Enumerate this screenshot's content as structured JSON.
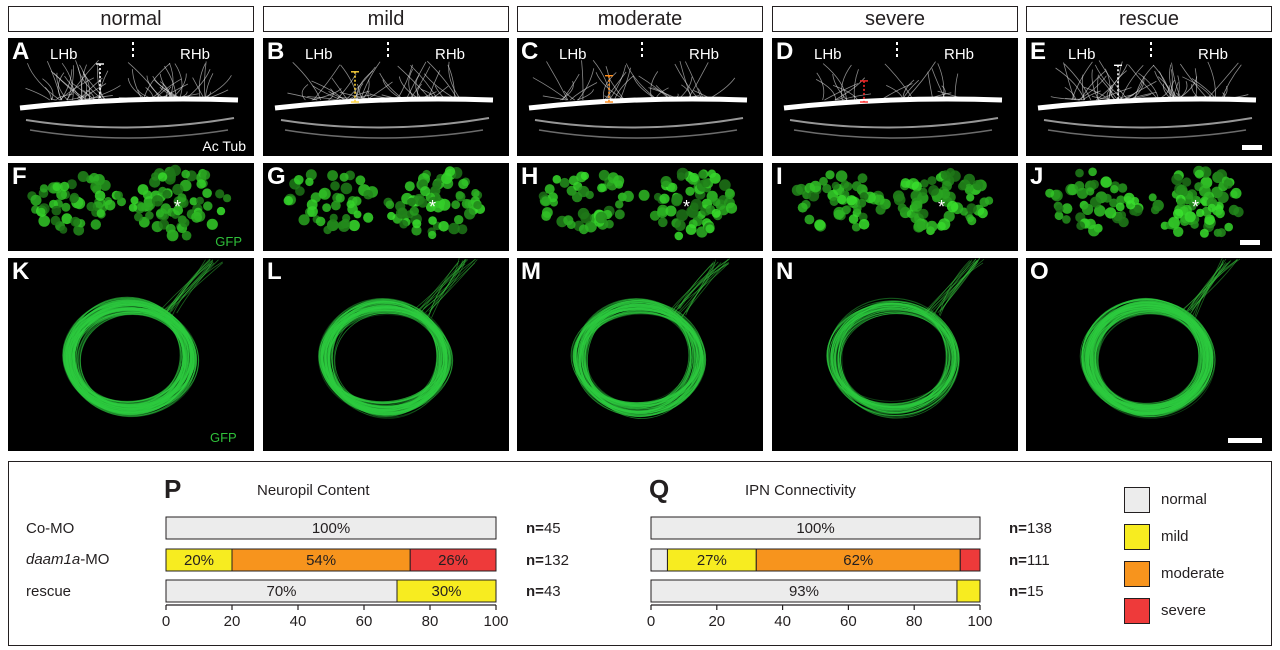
{
  "columns": [
    {
      "header": "normal",
      "letters": [
        "A",
        "F",
        "K"
      ],
      "img_labels": {
        "left": "LHb",
        "right": "RHb"
      },
      "scale_color": "#ffffff",
      "neuropil": 1.0,
      "gfp": 1.0,
      "ipn": 1.0
    },
    {
      "header": "mild",
      "letters": [
        "B",
        "G",
        "L"
      ],
      "img_labels": {
        "left": "LHb",
        "right": "RHb"
      },
      "scale_color": "#ffd43b",
      "neuropil": 0.7,
      "gfp": 0.8,
      "ipn": 0.8
    },
    {
      "header": "moderate",
      "letters": [
        "C",
        "H",
        "M"
      ],
      "img_labels": {
        "left": "LHb",
        "right": "RHb"
      },
      "scale_color": "#ff8c1a",
      "neuropil": 0.55,
      "gfp": 0.85,
      "ipn": 0.7
    },
    {
      "header": "severe",
      "letters": [
        "D",
        "I",
        "N"
      ],
      "img_labels": {
        "left": "LHb",
        "right": "RHb"
      },
      "scale_color": "#ff2a2a",
      "neuropil": 0.35,
      "gfp": 0.95,
      "ipn": 0.55
    },
    {
      "header": "rescue",
      "letters": [
        "E",
        "J",
        "O"
      ],
      "img_labels": {
        "left": "LHb",
        "right": "RHb"
      },
      "scale_color": "#ffffff",
      "neuropil": 0.95,
      "gfp": 0.9,
      "ipn": 1.0
    }
  ],
  "stains": {
    "actub": "Ac Tub",
    "gfp_f": "GFP",
    "gfp_k": "GFP"
  },
  "legend": [
    {
      "label": "normal",
      "color": "#ececec"
    },
    {
      "label": "mild",
      "color": "#f7ec20"
    },
    {
      "label": "moderate",
      "color": "#f7941d"
    },
    {
      "label": "severe",
      "color": "#ee3a3a"
    }
  ],
  "chart_data": [
    {
      "type": "bar",
      "letter": "P",
      "title": "Neuropil Content",
      "categories": [
        "Co-MO",
        "daam1a-MO",
        "rescue"
      ],
      "category_plain": "-MO",
      "category_italic": "daam1a",
      "xlim": [
        0,
        100
      ],
      "xticks": [
        "0",
        "20",
        "40",
        "60",
        "80",
        "100"
      ],
      "series": [
        {
          "name": "normal",
          "values": [
            100,
            0,
            70
          ]
        },
        {
          "name": "mild",
          "values": [
            0,
            20,
            30
          ]
        },
        {
          "name": "moderate",
          "values": [
            0,
            54,
            0
          ]
        },
        {
          "name": "severe",
          "values": [
            0,
            26,
            0
          ]
        }
      ],
      "segment_labels": [
        [
          "100%"
        ],
        [
          "20%",
          "54%",
          "26%"
        ],
        [
          "70%",
          "30%"
        ]
      ],
      "n_prefix": "n=",
      "n": [
        "45",
        "132",
        "43"
      ]
    },
    {
      "type": "bar",
      "letter": "Q",
      "title": "IPN Connectivity",
      "categories": [
        "Co-MO",
        "daam1a-MO",
        "rescue"
      ],
      "xlim": [
        0,
        100
      ],
      "xticks": [
        "0",
        "20",
        "40",
        "60",
        "80",
        "100"
      ],
      "series": [
        {
          "name": "normal",
          "values": [
            100,
            5,
            93
          ]
        },
        {
          "name": "mild",
          "values": [
            0,
            27,
            7
          ]
        },
        {
          "name": "moderate",
          "values": [
            0,
            62,
            0
          ]
        },
        {
          "name": "severe",
          "values": [
            0,
            6,
            0
          ]
        }
      ],
      "segment_labels": [
        [
          "100%"
        ],
        [
          "",
          "27%",
          "62%",
          ""
        ],
        [
          "93%",
          ""
        ]
      ],
      "n_prefix": "n=",
      "n": [
        "138",
        "111",
        "15"
      ]
    }
  ]
}
